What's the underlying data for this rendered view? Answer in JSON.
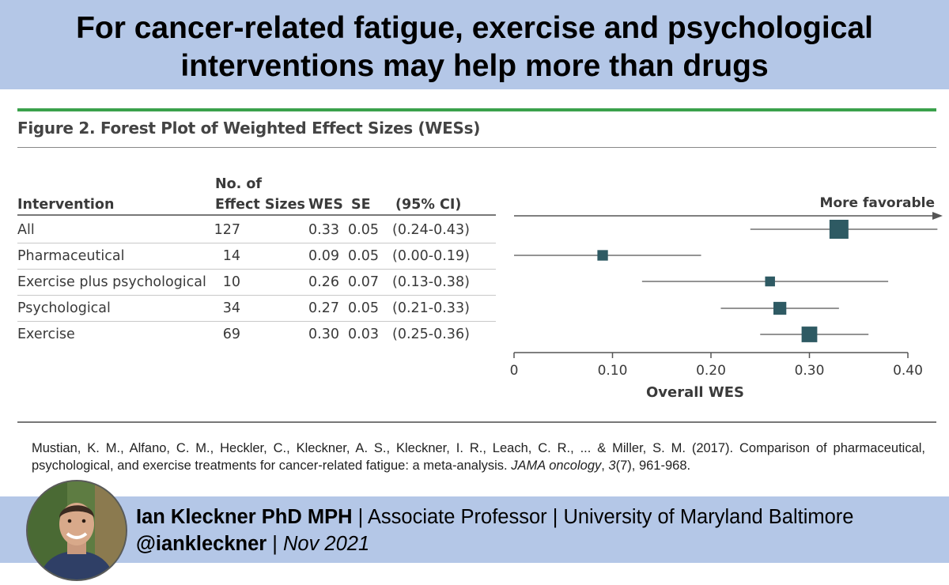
{
  "banner": {
    "line1": "For cancer-related fatigue, exercise and psychological",
    "line2": "interventions may help more than drugs"
  },
  "figure_title": "Figure 2. Forest Plot of Weighted Effect Sizes (WESs)",
  "table": {
    "headers": {
      "intervention": "Intervention",
      "n_line1": "No. of",
      "n_line2": "Effect Sizes",
      "wes": "WES",
      "se": "SE",
      "ci": "(95% CI)"
    },
    "rows": [
      {
        "intervention": "All",
        "n": "127",
        "wes": "0.33",
        "se": "0.05",
        "ci": "(0.24-0.43)"
      },
      {
        "intervention": "Pharmaceutical",
        "n": "14",
        "wes": "0.09",
        "se": "0.05",
        "ci": "(0.00-0.19)"
      },
      {
        "intervention": "Exercise plus psychological",
        "n": "10",
        "wes": "0.26",
        "se": "0.07",
        "ci": "(0.13-0.38)"
      },
      {
        "intervention": "Psychological",
        "n": "34",
        "wes": "0.27",
        "se": "0.05",
        "ci": "(0.21-0.33)"
      },
      {
        "intervention": "Exercise",
        "n": "69",
        "wes": "0.30",
        "se": "0.03",
        "ci": "(0.25-0.36)"
      }
    ]
  },
  "chart_data": {
    "type": "scatter",
    "subtype": "forest-plot",
    "title": "Figure 2. Forest Plot of Weighted Effect Sizes (WESs)",
    "xlabel": "Overall WES",
    "ylabel": "",
    "xlim": [
      0,
      0.4
    ],
    "xticks": [
      0,
      0.1,
      0.2,
      0.3,
      0.4
    ],
    "xtick_labels": [
      "0",
      "0.10",
      "0.20",
      "0.30",
      "0.40"
    ],
    "direction_label": "More favorable",
    "series": [
      {
        "name": "All",
        "estimate": 0.33,
        "ci_low": 0.24,
        "ci_high": 0.43,
        "n": 127
      },
      {
        "name": "Pharmaceutical",
        "estimate": 0.09,
        "ci_low": 0.0,
        "ci_high": 0.19,
        "n": 14
      },
      {
        "name": "Exercise plus psychological",
        "estimate": 0.26,
        "ci_low": 0.13,
        "ci_high": 0.38,
        "n": 10
      },
      {
        "name": "Psychological",
        "estimate": 0.27,
        "ci_low": 0.21,
        "ci_high": 0.33,
        "n": 34
      },
      {
        "name": "Exercise",
        "estimate": 0.3,
        "ci_low": 0.25,
        "ci_high": 0.36,
        "n": 69
      }
    ],
    "colors": {
      "marker": "#2e5a63",
      "lines": "#555555"
    }
  },
  "citation": {
    "part1": "Mustian, K. M., Alfano, C. M., Heckler, C., Kleckner, A. S., Kleckner, I. R., Leach, C. R., ... & Miller, S. M. (2017). Comparison of pharmaceutical, psychological, and exercise treatments for cancer-related fatigue: a meta-analysis. ",
    "journal": "JAMA oncology",
    "part2": ", ",
    "volume": "3",
    "part3": "(7), 961-968."
  },
  "author": {
    "name": "Ian Kleckner PhD MPH",
    "details": " | Associate Professor | University of Maryland Baltimore",
    "handle": "@iankleckner",
    "sep": " | ",
    "date": "Nov 2021"
  },
  "colors": {
    "banner": "#b4c7e7",
    "figure_rule": "#3aa14b"
  }
}
